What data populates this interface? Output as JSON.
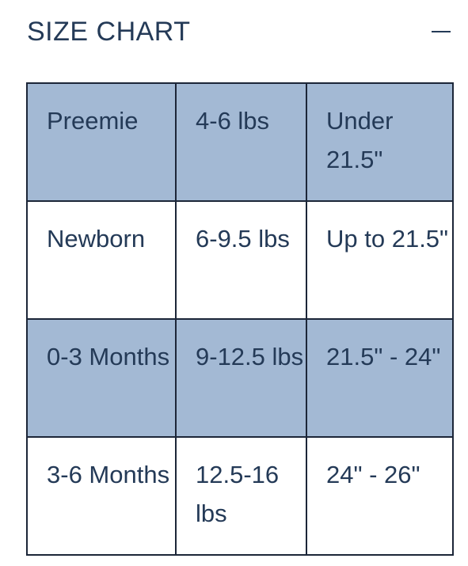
{
  "header": {
    "title": "SIZE CHART",
    "toggle_icon": "minus-icon"
  },
  "colors": {
    "shaded_row": "#a3b9d4",
    "text": "#243a57",
    "border": "#1c2638"
  },
  "size_table": {
    "rows": [
      {
        "shaded": true,
        "cells": [
          "Preemie",
          "4-6 lbs",
          "Under 21.5\""
        ]
      },
      {
        "shaded": false,
        "cells": [
          "Newborn",
          "6-9.5 lbs",
          "Up to 21.5\""
        ]
      },
      {
        "shaded": true,
        "cells": [
          "0-3 Months",
          "9-12.5 lbs",
          "21.5\" - 24\""
        ]
      },
      {
        "shaded": false,
        "cells": [
          "3-6 Months",
          "12.5-16 lbs",
          "24\" - 26\""
        ]
      }
    ]
  }
}
